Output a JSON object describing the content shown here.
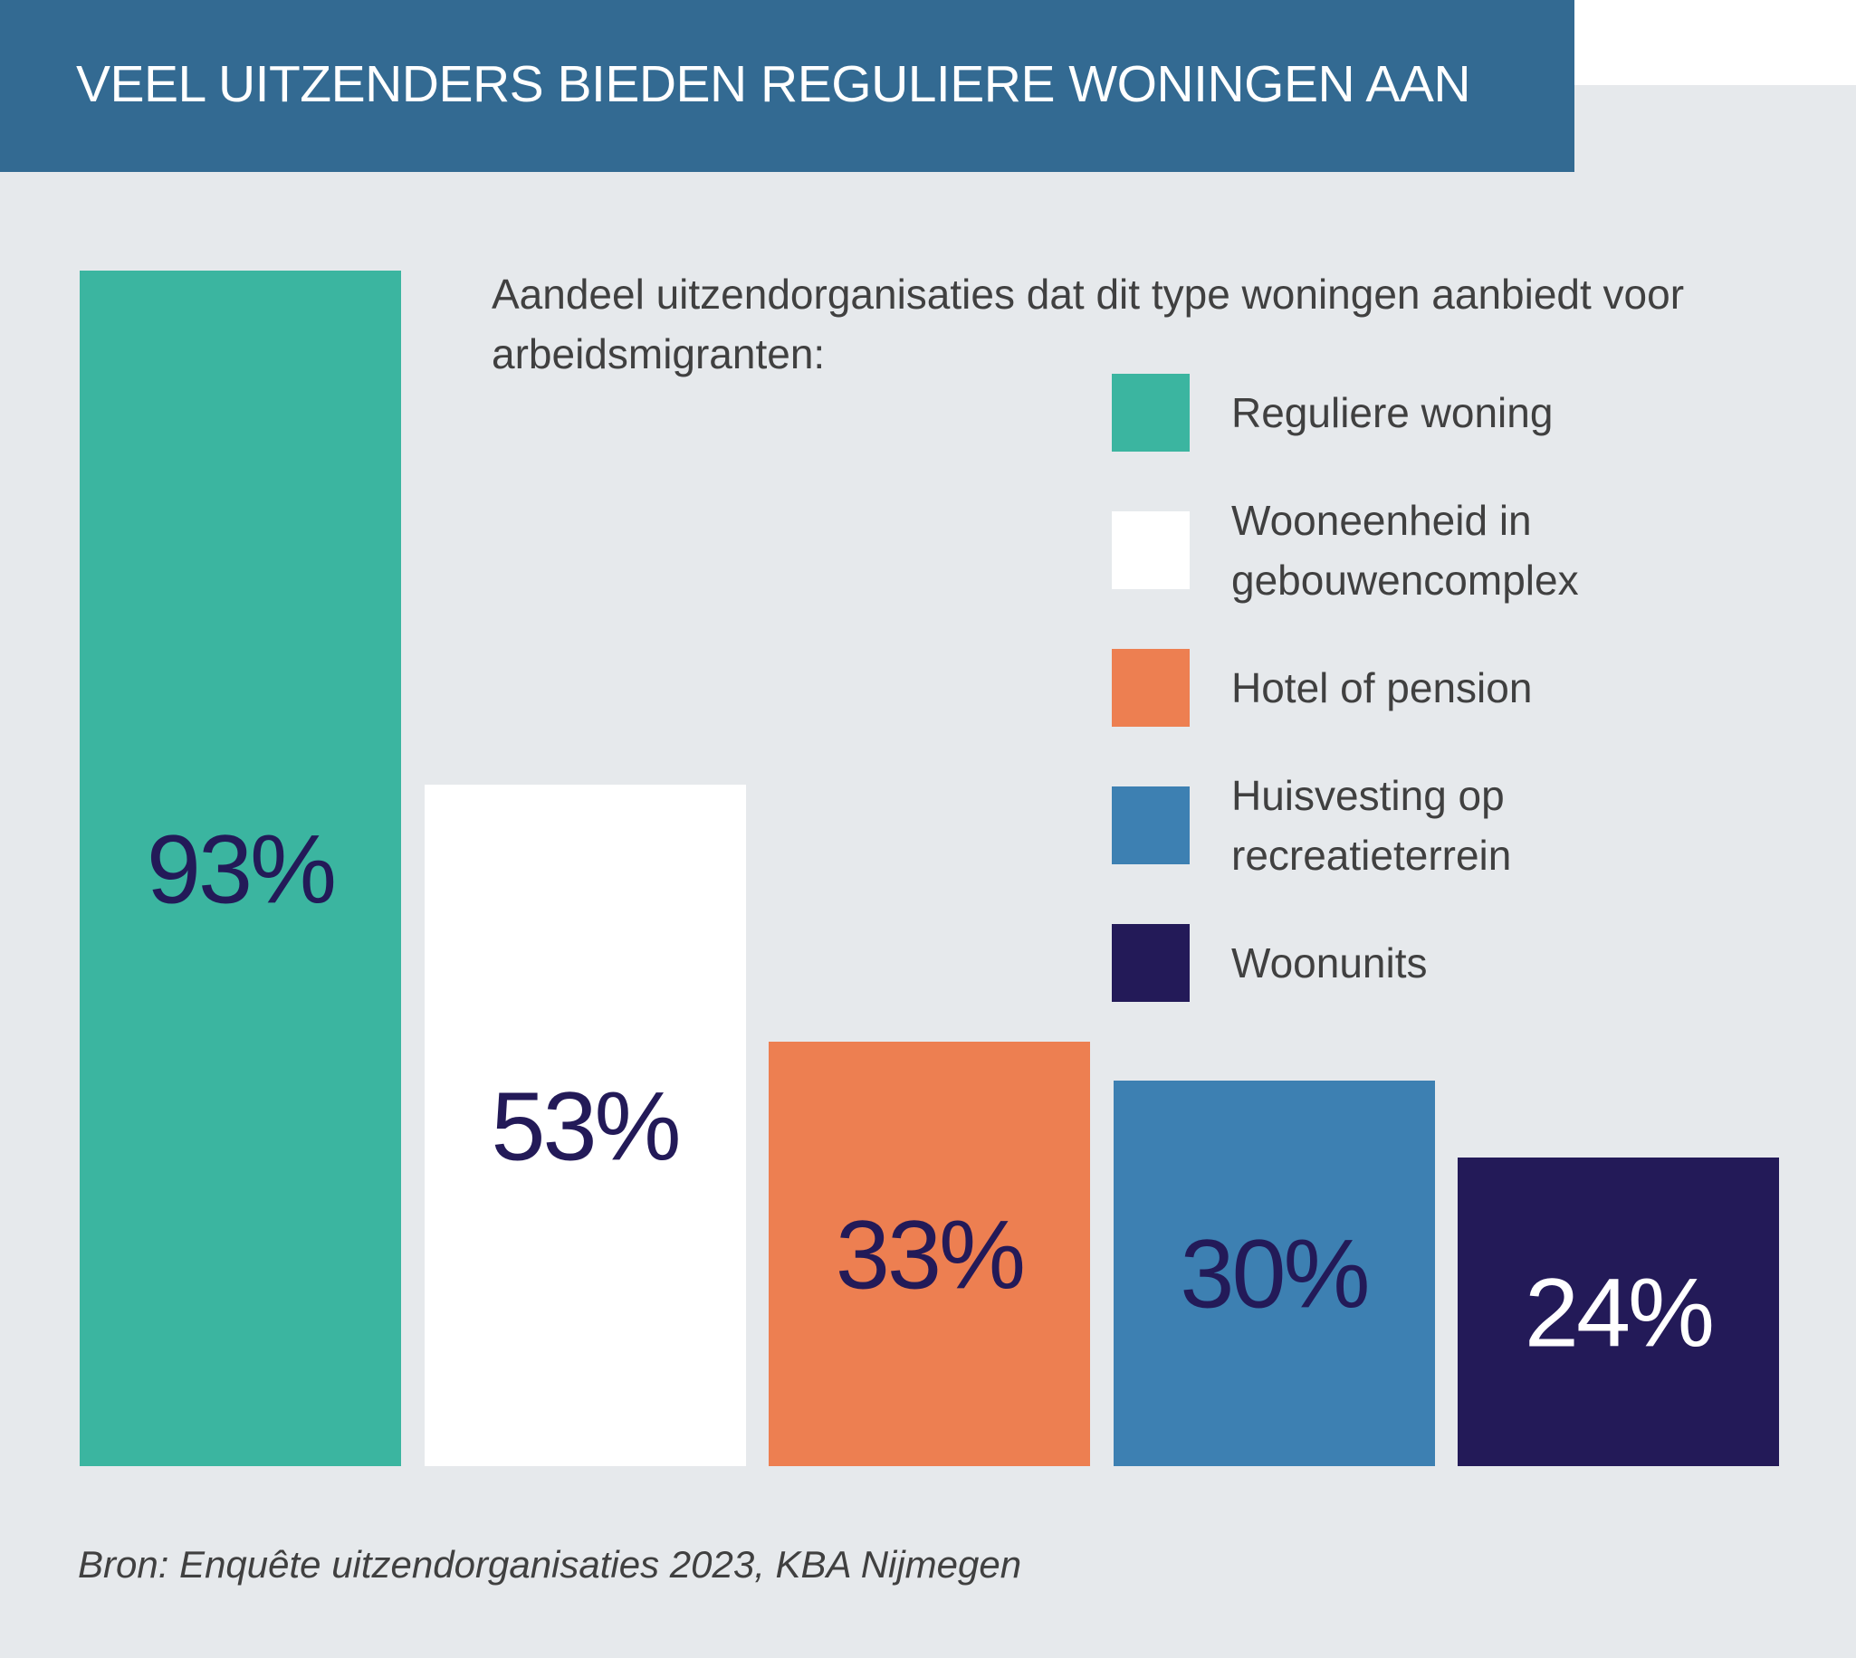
{
  "title": "VEEL UITZENDERS BIEDEN REGULIERE WONINGEN AAN",
  "chart_data": {
    "type": "bar",
    "title": "VEEL UITZENDERS BIEDEN REGULIERE WONINGEN AAN",
    "subtitle": "Aandeel uitzendorganisaties dat dit type woningen aanbiedt voor arbeidsmigranten:",
    "categories": [
      "Reguliere woning",
      "Wooneenheid in gebouwencomplex",
      "Hotel of pension",
      "Huisvesting op recreatieterrein",
      "Woonunits"
    ],
    "values": [
      93,
      53,
      33,
      30,
      24
    ],
    "labels": [
      "93%",
      "53%",
      "33%",
      "30%",
      "24%"
    ],
    "colors": [
      "#3bb5a0",
      "#ffffff",
      "#ed7f51",
      "#3d80b2",
      "#231a58"
    ],
    "label_colors": [
      "#231a58",
      "#231a58",
      "#231a58",
      "#231a58",
      "#ffffff"
    ],
    "unit": "%",
    "ylim": [
      0,
      100
    ],
    "grid": false,
    "legend_position": "top-right",
    "source": "Bron: Enquête uitzendorganisaties 2023, KBA Nijmegen"
  }
}
